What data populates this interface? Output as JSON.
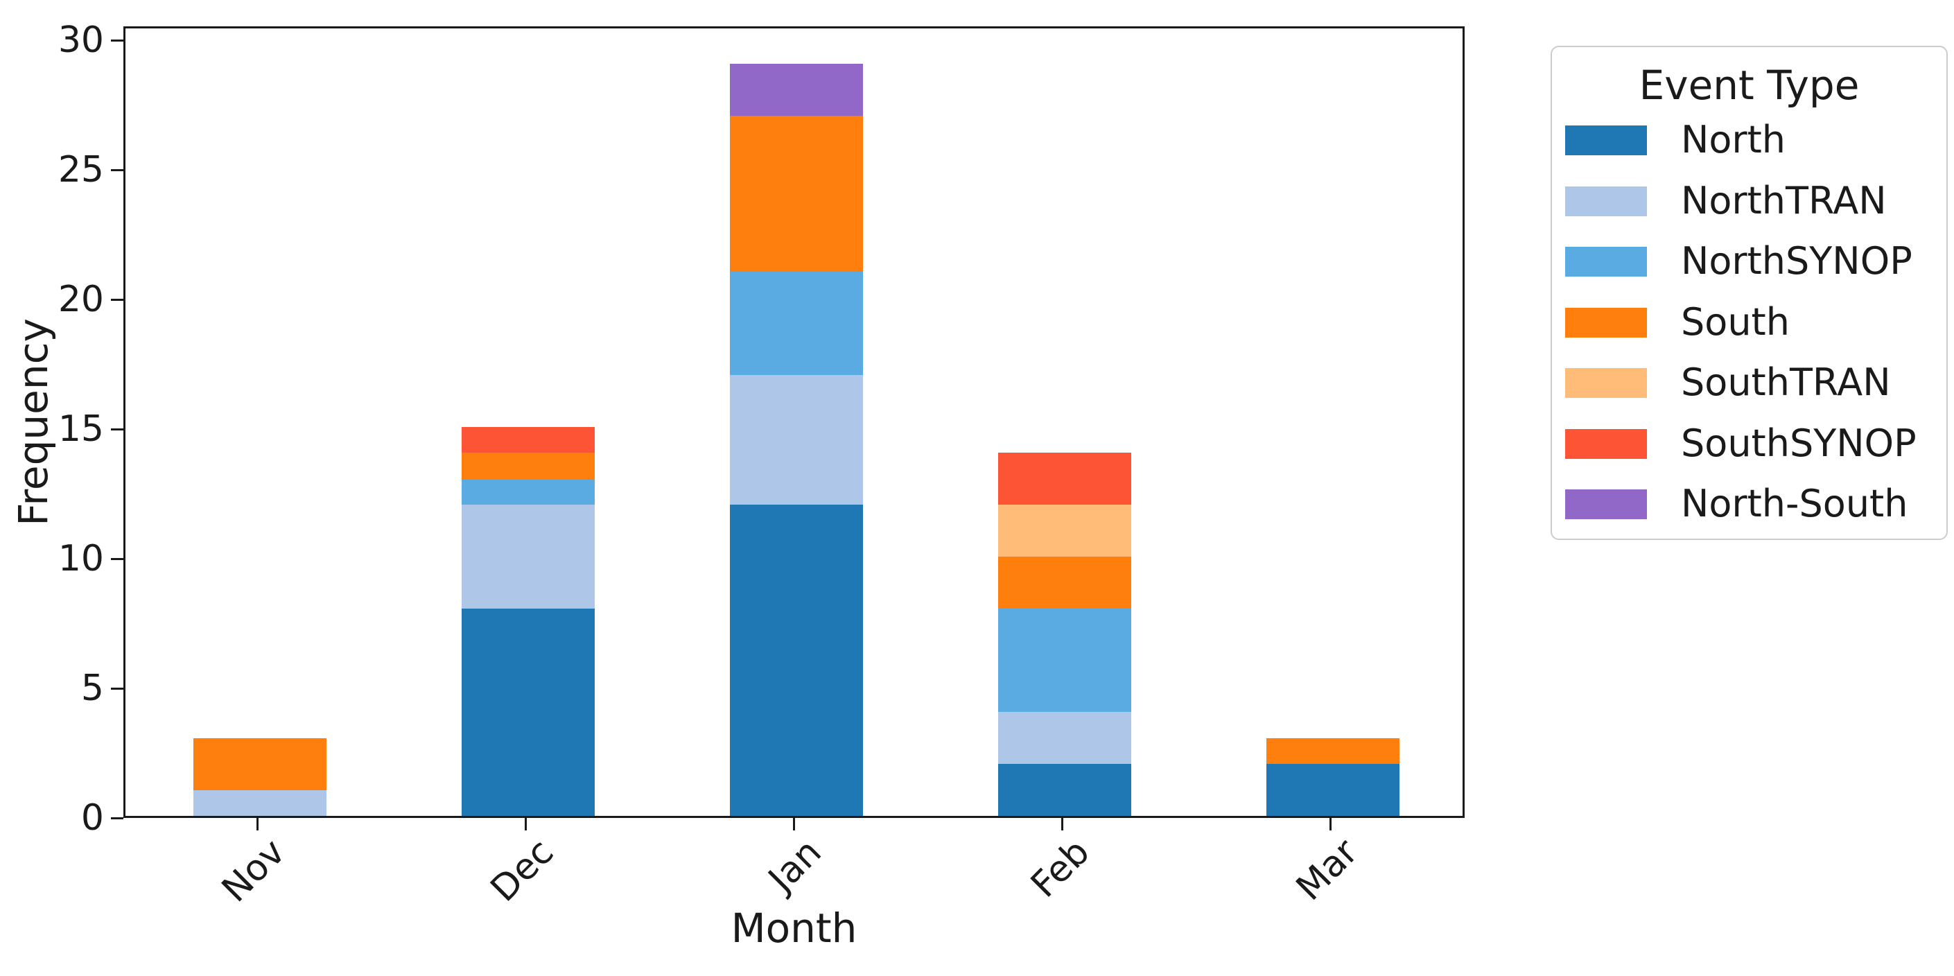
{
  "chart_data": {
    "type": "bar",
    "stacked": true,
    "title": "",
    "xlabel": "Month",
    "ylabel": "Frequency",
    "categories": [
      "Nov",
      "Dec",
      "Jan",
      "Feb",
      "Mar"
    ],
    "series": [
      {
        "name": "North",
        "color": "#1f77b4",
        "values": [
          0,
          8,
          12,
          2,
          2
        ]
      },
      {
        "name": "NorthTRAN",
        "color": "#aec7e8",
        "values": [
          1,
          4,
          5,
          2,
          0
        ]
      },
      {
        "name": "NorthSYNOP",
        "color": "#5aabe2",
        "values": [
          0,
          1,
          4,
          4,
          0
        ]
      },
      {
        "name": "South",
        "color": "#ff7f0e",
        "values": [
          2,
          1,
          6,
          2,
          1
        ]
      },
      {
        "name": "SouthTRAN",
        "color": "#ffbb78",
        "values": [
          0,
          0,
          0,
          2,
          0
        ]
      },
      {
        "name": "SouthSYNOP",
        "color": "#fc5434",
        "values": [
          0,
          1,
          0,
          2,
          0
        ]
      },
      {
        "name": "North-South",
        "color": "#9168c8",
        "values": [
          0,
          0,
          2,
          0,
          0
        ]
      }
    ],
    "stack_totals": [
      3,
      15,
      29,
      14,
      3
    ],
    "y_ticks": [
      0,
      5,
      10,
      15,
      20,
      25,
      30
    ],
    "ylim": [
      0,
      30.5
    ],
    "grid": false,
    "legend_title": "Event Type",
    "legend_position": "outside-right",
    "axis_color": "#1a1a1a",
    "background_color": "#ffffff"
  }
}
